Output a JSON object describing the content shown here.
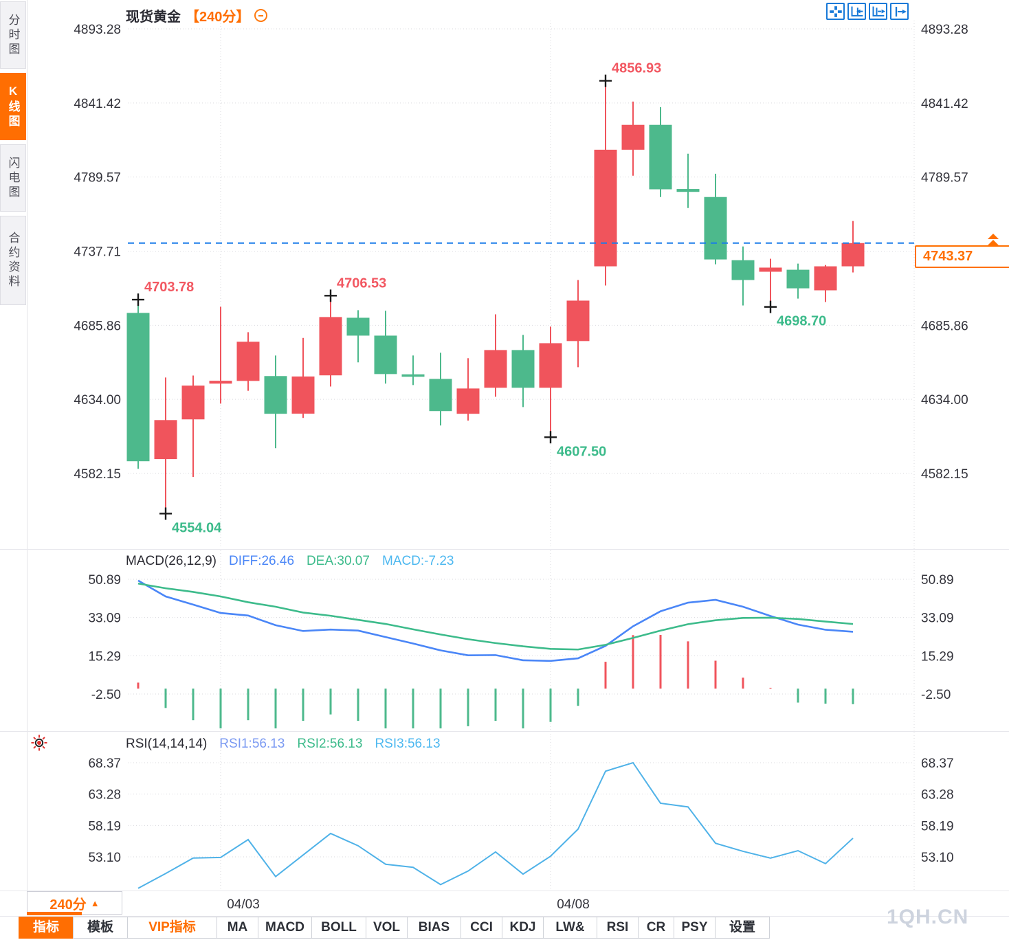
{
  "header": {
    "period_bracket": "【240分】"
  },
  "sidebar": {
    "tabs": [
      {
        "label": "分时图",
        "active": false
      },
      {
        "label": "K线图",
        "active": true
      },
      {
        "label": "闪电图",
        "active": false
      },
      {
        "label": "合约资料",
        "active": false
      }
    ]
  },
  "top_icons": [
    {
      "name": "pan-icon"
    },
    {
      "name": "compress-x-axis-icon"
    },
    {
      "name": "expand-x-axis-icon"
    },
    {
      "name": "shift-right-icon"
    }
  ],
  "price_box": {
    "value": "4743.37"
  },
  "period_selector": {
    "label": "240分",
    "arrow": "▲"
  },
  "toolbar": {
    "items": [
      {
        "label": "指标",
        "state": "active"
      },
      {
        "label": "模板",
        "state": ""
      },
      {
        "label": "VIP指标",
        "state": "vip"
      },
      {
        "label": "MA",
        "state": ""
      },
      {
        "label": "MACD",
        "state": ""
      },
      {
        "label": "BOLL",
        "state": ""
      },
      {
        "label": "VOL",
        "state": ""
      },
      {
        "label": "BIAS",
        "state": ""
      },
      {
        "label": "CCI",
        "state": ""
      },
      {
        "label": "KDJ",
        "state": ""
      },
      {
        "label": "LW&",
        "state": ""
      },
      {
        "label": "RSI",
        "state": ""
      },
      {
        "label": "CR",
        "state": ""
      },
      {
        "label": "PSY",
        "state": ""
      },
      {
        "label": "设置",
        "state": ""
      }
    ]
  },
  "watermark": "1QH.CN",
  "chart_data": [
    {
      "type": "candlestick",
      "symbol": "现货黄金",
      "period": "240分",
      "up_color": "#f0545c",
      "down_color": "#4db98c",
      "y_ticks": [
        "4893.28",
        "4841.42",
        "4789.57",
        "4737.71",
        "4685.86",
        "4634.00",
        "4582.15"
      ],
      "x_ticks": [
        {
          "index": 3,
          "label": "04/03"
        },
        {
          "index": 15,
          "label": "04/08"
        }
      ],
      "current_price": 4743.37,
      "current_price_label": "4743.37",
      "candles": [
        {
          "o": 4694.5,
          "h": 4703.78,
          "l": 4585.4,
          "c": 4590.7
        },
        {
          "o": 4592.2,
          "h": 4649.3,
          "l": 4554.04,
          "c": 4619.5
        },
        {
          "o": 4620.0,
          "h": 4650.7,
          "l": 4579.7,
          "c": 4643.6
        },
        {
          "o": 4645.0,
          "h": 4698.8,
          "l": 4631.0,
          "c": 4647.0
        },
        {
          "o": 4646.9,
          "h": 4681.0,
          "l": 4640.0,
          "c": 4674.3
        },
        {
          "o": 4650.3,
          "h": 4664.7,
          "l": 4599.8,
          "c": 4623.9
        },
        {
          "o": 4624.0,
          "h": 4677.0,
          "l": 4621.0,
          "c": 4650.0
        },
        {
          "o": 4650.8,
          "h": 4706.53,
          "l": 4643.0,
          "c": 4691.6
        },
        {
          "o": 4691.1,
          "h": 4696.4,
          "l": 4659.9,
          "c": 4678.6
        },
        {
          "o": 4678.6,
          "h": 4696.0,
          "l": 4645.0,
          "c": 4651.7
        },
        {
          "o": 4651.5,
          "h": 4664.7,
          "l": 4644.0,
          "c": 4649.8
        },
        {
          "o": 4648.3,
          "h": 4666.6,
          "l": 4615.7,
          "c": 4625.8
        },
        {
          "o": 4623.9,
          "h": 4662.8,
          "l": 4619.1,
          "c": 4641.6
        },
        {
          "o": 4642.1,
          "h": 4693.5,
          "l": 4635.8,
          "c": 4668.5
        },
        {
          "o": 4668.5,
          "h": 4679.1,
          "l": 4628.6,
          "c": 4642.1
        },
        {
          "o": 4642.1,
          "h": 4684.9,
          "l": 4607.5,
          "c": 4673.3
        },
        {
          "o": 4674.8,
          "h": 4717.5,
          "l": 4656.5,
          "c": 4703.1
        },
        {
          "o": 4727.1,
          "h": 4856.93,
          "l": 4713.7,
          "c": 4808.7
        },
        {
          "o": 4808.7,
          "h": 4842.4,
          "l": 4790.5,
          "c": 4826.1
        },
        {
          "o": 4826.1,
          "h": 4838.5,
          "l": 4775.6,
          "c": 4781.0
        },
        {
          "o": 4781.2,
          "h": 4805.9,
          "l": 4767.9,
          "c": 4779.2
        },
        {
          "o": 4775.6,
          "h": 4791.9,
          "l": 4728.5,
          "c": 4731.9
        },
        {
          "o": 4731.4,
          "h": 4741.0,
          "l": 4699.7,
          "c": 4717.5
        },
        {
          "o": 4723.3,
          "h": 4732.4,
          "l": 4698.7,
          "c": 4726.2
        },
        {
          "o": 4724.7,
          "h": 4729.0,
          "l": 4704.5,
          "c": 4711.7
        },
        {
          "o": 4710.3,
          "h": 4728.0,
          "l": 4702.1,
          "c": 4727.1
        },
        {
          "o": 4727.1,
          "h": 4758.8,
          "l": 4722.8,
          "c": 4743.37
        }
      ],
      "annotations": [
        {
          "index": 0,
          "price": 4703.78,
          "label": "4703.78",
          "side": "high"
        },
        {
          "index": 1,
          "price": 4554.04,
          "label": "4554.04",
          "side": "low"
        },
        {
          "index": 7,
          "price": 4706.53,
          "label": "4706.53",
          "side": "high"
        },
        {
          "index": 15,
          "price": 4607.5,
          "label": "4607.50",
          "side": "low"
        },
        {
          "index": 17,
          "price": 4856.93,
          "label": "4856.93",
          "side": "high"
        },
        {
          "index": 23,
          "price": 4698.7,
          "label": "4698.70",
          "side": "low"
        }
      ]
    },
    {
      "type": "macd",
      "header": {
        "title": "MACD(26,12,9)",
        "diff": "DIFF:26.46",
        "dea": "DEA:30.07",
        "macd": "MACD:-7.23"
      },
      "y_ticks": [
        "50.89",
        "33.09",
        "15.29",
        "-2.50"
      ],
      "diff": [
        50.3,
        42.9,
        39.1,
        35.2,
        34.0,
        29.5,
        26.8,
        27.5,
        27.0,
        24.0,
        21.0,
        17.8,
        15.5,
        15.6,
        13.2,
        12.9,
        14.1,
        19.9,
        29.0,
        36.0,
        40.0,
        41.3,
        38.1,
        33.8,
        29.8,
        27.4,
        26.46
      ],
      "dea": [
        48.9,
        46.7,
        45.0,
        42.9,
        40.2,
        38.1,
        35.4,
        33.9,
        32.0,
        30.1,
        27.6,
        25.2,
        23.0,
        21.2,
        19.7,
        18.5,
        18.2,
        20.4,
        23.6,
        27.0,
        30.0,
        31.8,
        32.9,
        33.0,
        32.4,
        31.2,
        30.07
      ],
      "hist": [
        2.8,
        -9.0,
        -14.7,
        -18.5,
        -14.7,
        -18.5,
        -15.0,
        -12.0,
        -15.0,
        -18.5,
        -18.5,
        -18.5,
        -17.5,
        -15.0,
        -18.5,
        -15.5,
        -8.0,
        12.5,
        24.9,
        25.0,
        22.0,
        13.0,
        5.1,
        0.4,
        -6.5,
        -7.0,
        -7.23
      ]
    },
    {
      "type": "line",
      "name": "RSI",
      "header": {
        "title": "RSI(14,14,14)",
        "rsi1": "RSI1:56.13",
        "rsi2": "RSI2:56.13",
        "rsi3": "RSI3:56.13"
      },
      "y_ticks": [
        "68.37",
        "63.28",
        "58.19",
        "53.10"
      ],
      "values": [
        48.0,
        50.4,
        52.9,
        53.0,
        55.9,
        49.9,
        53.4,
        56.9,
        54.9,
        51.9,
        51.4,
        48.6,
        50.8,
        53.9,
        50.3,
        53.2,
        57.6,
        67.0,
        68.37,
        61.8,
        61.2,
        55.3,
        54.0,
        52.9,
        54.1,
        52.0,
        56.13
      ]
    }
  ]
}
